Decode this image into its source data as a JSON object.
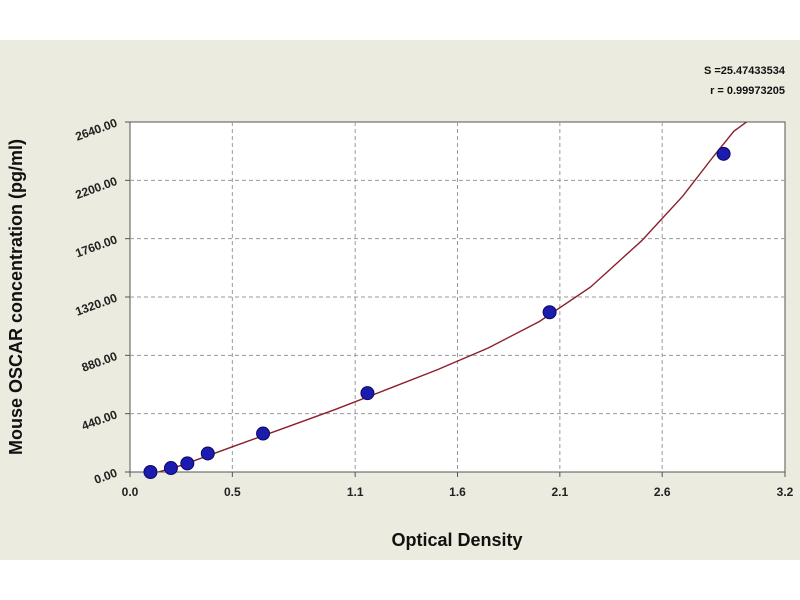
{
  "chart_data": {
    "type": "scatter",
    "xlabel": "Optical Density",
    "ylabel": "Mouse OSCAR concentration (pg/ml)",
    "xlim": [
      0.0,
      3.2
    ],
    "ylim": [
      0,
      2640
    ],
    "x_ticks": [
      0.0,
      0.5,
      1.1,
      1.6,
      2.1,
      2.6,
      3.2
    ],
    "x_tick_labels": [
      "0.0",
      "0.5",
      "1.1",
      "1.6",
      "2.1",
      "2.6",
      "3.2"
    ],
    "y_ticks": [
      0,
      440,
      880,
      1320,
      1760,
      2200,
      2640
    ],
    "y_tick_labels": [
      "0.00",
      "440.00",
      "880.00",
      "1320.00",
      "1760.00",
      "2200.00",
      "2640.00"
    ],
    "grid": true,
    "stats": [
      "S =25.47433534",
      "r = 0.99973205"
    ],
    "series": [
      {
        "marker_color": "#1b1bb0",
        "x": [
          0.1,
          0.2,
          0.28,
          0.38,
          0.65,
          1.16,
          2.05,
          2.9
        ],
        "y": [
          0,
          30,
          65,
          140,
          290,
          595,
          1205,
          2400
        ]
      }
    ],
    "fit_curve": {
      "color": "#8b1f2a",
      "x": [
        0.05,
        0.25,
        0.5,
        0.75,
        1.0,
        1.25,
        1.5,
        1.75,
        2.0,
        2.25,
        2.5,
        2.7,
        2.85,
        2.95,
        3.03
      ],
      "y": [
        -40,
        50,
        190,
        330,
        470,
        620,
        770,
        935,
        1135,
        1395,
        1745,
        2080,
        2380,
        2570,
        2660
      ]
    }
  }
}
